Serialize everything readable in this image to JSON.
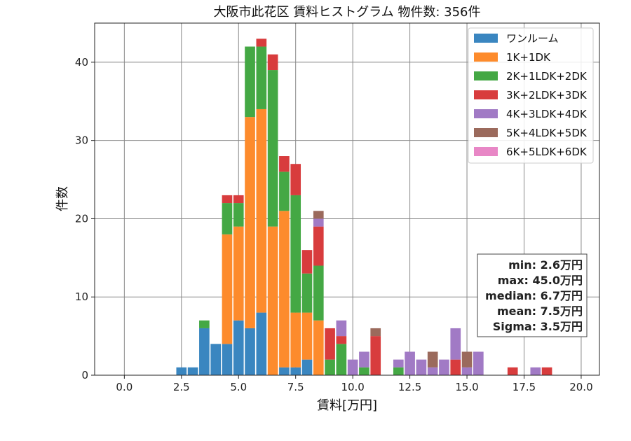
{
  "chart_data": {
    "type": "bar",
    "stacked": true,
    "title": "大阪市此花区 賃料ヒストグラム  物件数: 356件",
    "xlabel": "賃料[万円]",
    "ylabel": "件数",
    "xlim": [
      -1.3,
      20.8
    ],
    "ylim": [
      0,
      45
    ],
    "xticks": [
      0.0,
      2.5,
      5.0,
      7.5,
      10.0,
      12.5,
      15.0,
      17.5,
      20.0
    ],
    "xtick_labels": [
      "0.0",
      "2.5",
      "5.0",
      "7.5",
      "10.0",
      "12.5",
      "15.0",
      "17.5",
      "20.0"
    ],
    "yticks": [
      0,
      10,
      20,
      30,
      40
    ],
    "ytick_labels": [
      "0",
      "10",
      "20",
      "30",
      "40"
    ],
    "grid": true,
    "legend_position": "top-right",
    "bin_width": 0.5,
    "bins": [
      2.5,
      3.0,
      3.5,
      4.0,
      4.5,
      5.0,
      5.5,
      6.0,
      6.5,
      7.0,
      7.5,
      8.0,
      8.5,
      9.0,
      9.5,
      10.0,
      10.5,
      11.0,
      11.5,
      12.0,
      12.5,
      13.0,
      13.5,
      14.0,
      14.5,
      15.0,
      15.5,
      16.0,
      16.5,
      17.0,
      17.5,
      18.0,
      18.5
    ],
    "series": [
      {
        "name": "ワンルーム",
        "color": "#3a86c0",
        "values": [
          1,
          1,
          6,
          4,
          4,
          7,
          6,
          8,
          0,
          1,
          1,
          2,
          0,
          0,
          0,
          0,
          0,
          0,
          0,
          0,
          0,
          0,
          0,
          0,
          0,
          0,
          0,
          0,
          0,
          0,
          0,
          0,
          0
        ]
      },
      {
        "name": "1K+1DK",
        "color": "#fd8b2c",
        "values": [
          0,
          0,
          0,
          0,
          14,
          12,
          27,
          26,
          19,
          20,
          7,
          6,
          7,
          0,
          0,
          0,
          0,
          0,
          0,
          0,
          0,
          0,
          0,
          0,
          0,
          0,
          0,
          0,
          0,
          0,
          0,
          0,
          0
        ]
      },
      {
        "name": "2K+1LDK+2DK",
        "color": "#44a844",
        "values": [
          0,
          0,
          1,
          0,
          4,
          3,
          9,
          8,
          20,
          5,
          15,
          5,
          7,
          2,
          4,
          0,
          1,
          0,
          0,
          1,
          0,
          0,
          0,
          0,
          0,
          0,
          0,
          0,
          0,
          0,
          0,
          0,
          0
        ]
      },
      {
        "name": "3K+2LDK+3DK",
        "color": "#d83c3d",
        "values": [
          0,
          0,
          0,
          0,
          1,
          1,
          0,
          1,
          2,
          2,
          4,
          3,
          5,
          4,
          1,
          0,
          0,
          5,
          0,
          0,
          0,
          0,
          0,
          0,
          2,
          0,
          0,
          0,
          0,
          1,
          0,
          0,
          1
        ]
      },
      {
        "name": "4K+3LDK+4DK",
        "color": "#a17ac5",
        "values": [
          0,
          0,
          0,
          0,
          0,
          0,
          0,
          0,
          0,
          0,
          0,
          0,
          1,
          0,
          2,
          2,
          2,
          0,
          0,
          1,
          3,
          2,
          1,
          2,
          4,
          1,
          3,
          0,
          0,
          0,
          0,
          1,
          0
        ]
      },
      {
        "name": "5K+4LDK+5DK",
        "color": "#9b6a5c",
        "values": [
          0,
          0,
          0,
          0,
          0,
          0,
          0,
          0,
          0,
          0,
          0,
          0,
          1,
          0,
          0,
          0,
          0,
          1,
          0,
          0,
          0,
          0,
          2,
          0,
          0,
          2,
          0,
          0,
          0,
          0,
          0,
          0,
          0
        ]
      },
      {
        "name": "6K+5LDK+6DK",
        "color": "#e887c6",
        "values": [
          0,
          0,
          0,
          0,
          0,
          0,
          0,
          0,
          0,
          0,
          0,
          0,
          0,
          0,
          0,
          0,
          0,
          0,
          0,
          0,
          0,
          0,
          0,
          0,
          0,
          0,
          0,
          0,
          0,
          0,
          0,
          0,
          0
        ]
      }
    ],
    "stats_box": {
      "lines": [
        "min: 2.6万円",
        "max: 45.0万円",
        "median: 6.7万円",
        "mean: 7.5万円",
        "Sigma: 3.5万円"
      ]
    }
  }
}
